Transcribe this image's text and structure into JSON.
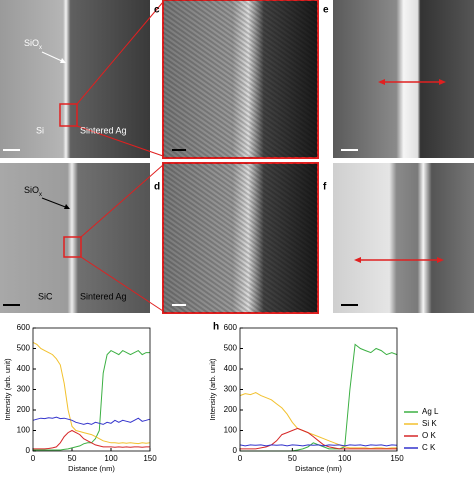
{
  "panels": {
    "a": {
      "oxide": "SiO",
      "oxide_sub": "x",
      "left": "Si",
      "right": "Sintered Ag"
    },
    "b": {
      "oxide": "SiO",
      "oxide_sub": "x",
      "left": "SiC",
      "right": "Sintered Ag"
    },
    "labels": {
      "c": "c",
      "d": "d",
      "e": "e",
      "f": "f",
      "h": "h"
    }
  },
  "chart_data": [
    {
      "type": "line",
      "x_label": "Distance (nm)",
      "y_label": "Intensity (arb. unit)",
      "x": [
        0,
        5,
        10,
        15,
        20,
        25,
        30,
        35,
        40,
        45,
        50,
        55,
        60,
        65,
        70,
        75,
        80,
        85,
        90,
        95,
        100,
        105,
        110,
        115,
        120,
        125,
        130,
        135,
        140,
        145,
        150
      ],
      "xlim": [
        0,
        150
      ],
      "xticks": [
        0,
        50,
        100,
        150
      ],
      "ylim": [
        0,
        600
      ],
      "yticks": [
        0,
        100,
        200,
        300,
        400,
        500,
        600
      ],
      "series": [
        {
          "color": "#3cb043",
          "values": [
            5,
            5,
            5,
            5,
            5,
            5,
            5,
            5,
            8,
            10,
            15,
            20,
            25,
            35,
            40,
            40,
            60,
            100,
            380,
            470,
            490,
            480,
            470,
            490,
            480,
            470,
            480,
            490,
            470,
            480,
            480
          ]
        },
        {
          "color": "#f2c12e",
          "values": [
            530,
            520,
            500,
            490,
            480,
            470,
            450,
            420,
            330,
            200,
            120,
            100,
            95,
            90,
            85,
            80,
            70,
            60,
            50,
            45,
            40,
            40,
            38,
            40,
            38,
            40,
            38,
            36,
            40,
            38,
            40
          ]
        },
        {
          "color": "#d62728",
          "values": [
            10,
            10,
            10,
            10,
            12,
            15,
            20,
            40,
            70,
            90,
            100,
            90,
            80,
            60,
            50,
            40,
            30,
            25,
            20,
            20,
            20,
            18,
            20,
            18,
            20,
            18,
            20,
            20,
            18,
            20,
            20
          ]
        },
        {
          "color": "#3333cc",
          "values": [
            150,
            155,
            160,
            158,
            162,
            160,
            165,
            158,
            160,
            155,
            150,
            140,
            135,
            130,
            135,
            130,
            140,
            135,
            130,
            140,
            135,
            150,
            140,
            150,
            145,
            140,
            150,
            160,
            145,
            150,
            155
          ]
        }
      ]
    },
    {
      "type": "line",
      "x_label": "Distance (nm)",
      "y_label": "Intensity (arb. unit)",
      "x": [
        0,
        5,
        10,
        15,
        20,
        25,
        30,
        35,
        40,
        45,
        50,
        55,
        60,
        65,
        70,
        75,
        80,
        85,
        90,
        95,
        100,
        105,
        110,
        115,
        120,
        125,
        130,
        135,
        140,
        145,
        150
      ],
      "xlim": [
        0,
        150
      ],
      "xticks": [
        0,
        50,
        100,
        150
      ],
      "ylim": [
        0,
        600
      ],
      "yticks": [
        0,
        100,
        200,
        300,
        400,
        500,
        600
      ],
      "legend": "right",
      "series": [
        {
          "name": "Ag L",
          "color": "#3cb043",
          "values": [
            0,
            0,
            0,
            0,
            0,
            0,
            0,
            0,
            0,
            0,
            0,
            5,
            10,
            20,
            40,
            30,
            20,
            10,
            10,
            10,
            20,
            300,
            520,
            500,
            490,
            480,
            500,
            490,
            470,
            480,
            470
          ]
        },
        {
          "name": "Si K",
          "color": "#f2c12e",
          "values": [
            270,
            280,
            275,
            285,
            270,
            260,
            250,
            230,
            210,
            180,
            140,
            110,
            100,
            90,
            80,
            70,
            60,
            50,
            40,
            30,
            20,
            15,
            15,
            15,
            15,
            12,
            15,
            15,
            12,
            15,
            15
          ]
        },
        {
          "name": "O K",
          "color": "#d62728",
          "values": [
            10,
            10,
            10,
            10,
            15,
            20,
            30,
            50,
            80,
            90,
            100,
            110,
            100,
            90,
            70,
            50,
            30,
            20,
            15,
            10,
            10,
            10,
            10,
            10,
            10,
            10,
            10,
            10,
            10,
            10,
            10
          ]
        },
        {
          "name": "C K",
          "color": "#3333cc",
          "values": [
            30,
            25,
            30,
            28,
            30,
            25,
            30,
            28,
            30,
            25,
            30,
            28,
            25,
            30,
            28,
            30,
            25,
            30,
            28,
            30,
            25,
            30,
            28,
            30,
            25,
            30,
            28,
            30,
            25,
            30,
            28
          ]
        }
      ]
    }
  ]
}
